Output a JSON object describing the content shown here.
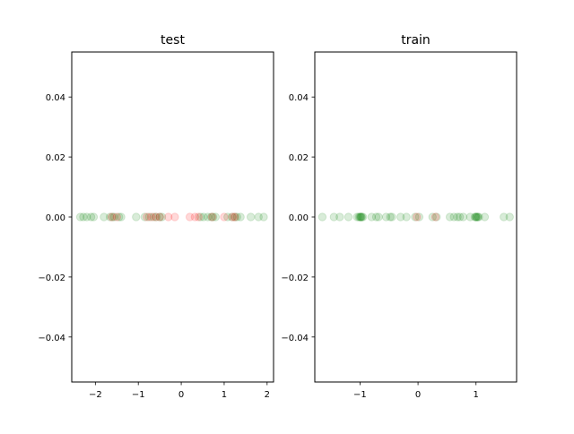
{
  "chart_data": [
    {
      "type": "scatter",
      "title": "test",
      "xlabel": "",
      "ylabel": "",
      "xlim": [
        -2.55,
        2.15
      ],
      "ylim": [
        -0.055,
        0.055
      ],
      "xticks": [
        -2,
        -1,
        0,
        1,
        2
      ],
      "xtick_labels": [
        "−2",
        "−1",
        "0",
        "1",
        "2"
      ],
      "yticks": [
        -0.04,
        -0.02,
        0.0,
        0.02,
        0.04
      ],
      "ytick_labels": [
        "−0.04",
        "−0.02",
        "0.00",
        "0.02",
        "0.04"
      ],
      "grid": false,
      "series": [
        {
          "color": "#008000",
          "alpha": 0.15,
          "x": [
            -2.35,
            -2.28,
            -2.2,
            -2.1,
            -2.04,
            -1.8,
            -1.66,
            -1.6,
            -1.56,
            -1.45,
            -1.4,
            -1.05,
            -0.85,
            -0.75,
            -0.65,
            -0.58,
            -0.5,
            -0.45,
            0.45,
            0.52,
            0.62,
            0.7,
            0.74,
            0.8,
            1.08,
            1.18,
            1.25,
            1.3,
            1.38,
            1.62,
            1.8,
            1.92
          ],
          "y": [
            0,
            0,
            0,
            0,
            0,
            0,
            0,
            0,
            0,
            0,
            0,
            0,
            0,
            0,
            0,
            0,
            0,
            0,
            0,
            0,
            0,
            0,
            0,
            0,
            0,
            0,
            0,
            0,
            0,
            0,
            0,
            0
          ]
        },
        {
          "color": "#ff0000",
          "alpha": 0.15,
          "x": [
            -1.62,
            -1.5,
            -0.8,
            -0.7,
            -0.6,
            -0.5,
            -0.3,
            -0.15,
            0.2,
            0.32,
            0.4,
            0.72,
            1.0,
            1.2,
            1.25
          ],
          "y": [
            0,
            0,
            0,
            0,
            0,
            0,
            0,
            0,
            0,
            0,
            0,
            0,
            0,
            0,
            0
          ]
        }
      ]
    },
    {
      "type": "scatter",
      "title": "train",
      "xlabel": "",
      "ylabel": "",
      "xlim": [
        -1.78,
        1.7
      ],
      "ylim": [
        -0.055,
        0.055
      ],
      "xticks": [
        -1,
        0,
        1
      ],
      "xtick_labels": [
        "−1",
        "0",
        "1"
      ],
      "yticks": [
        -0.04,
        -0.02,
        0.0,
        0.02,
        0.04
      ],
      "ytick_labels": [
        "−0.04",
        "−0.02",
        "0.00",
        "0.02",
        "0.04"
      ],
      "grid": false,
      "series": [
        {
          "color": "#008000",
          "alpha": 0.15,
          "x": [
            -1.65,
            -1.45,
            -1.35,
            -1.2,
            -1.05,
            -1.02,
            -1.0,
            -0.99,
            -0.98,
            -0.97,
            -0.95,
            -0.8,
            -0.72,
            -0.68,
            -0.55,
            -0.48,
            -0.45,
            -0.3,
            -0.2,
            -0.05,
            0.02,
            0.25,
            0.32,
            0.55,
            0.62,
            0.68,
            0.72,
            0.78,
            0.9,
            0.98,
            1.0,
            1.0,
            1.02,
            1.03,
            1.05,
            1.15,
            1.48,
            1.58
          ],
          "y": [
            0,
            0,
            0,
            0,
            0,
            0,
            0,
            0,
            0,
            0,
            0,
            0,
            0,
            0,
            0,
            0,
            0,
            0,
            0,
            0,
            0,
            0,
            0,
            0,
            0,
            0,
            0,
            0,
            0,
            0,
            0,
            0,
            0,
            0,
            0,
            0,
            0,
            0
          ]
        },
        {
          "color": "#ff0000",
          "alpha": 0.15,
          "x": [
            -0.02,
            0.3
          ],
          "y": [
            0,
            0
          ]
        }
      ]
    }
  ]
}
